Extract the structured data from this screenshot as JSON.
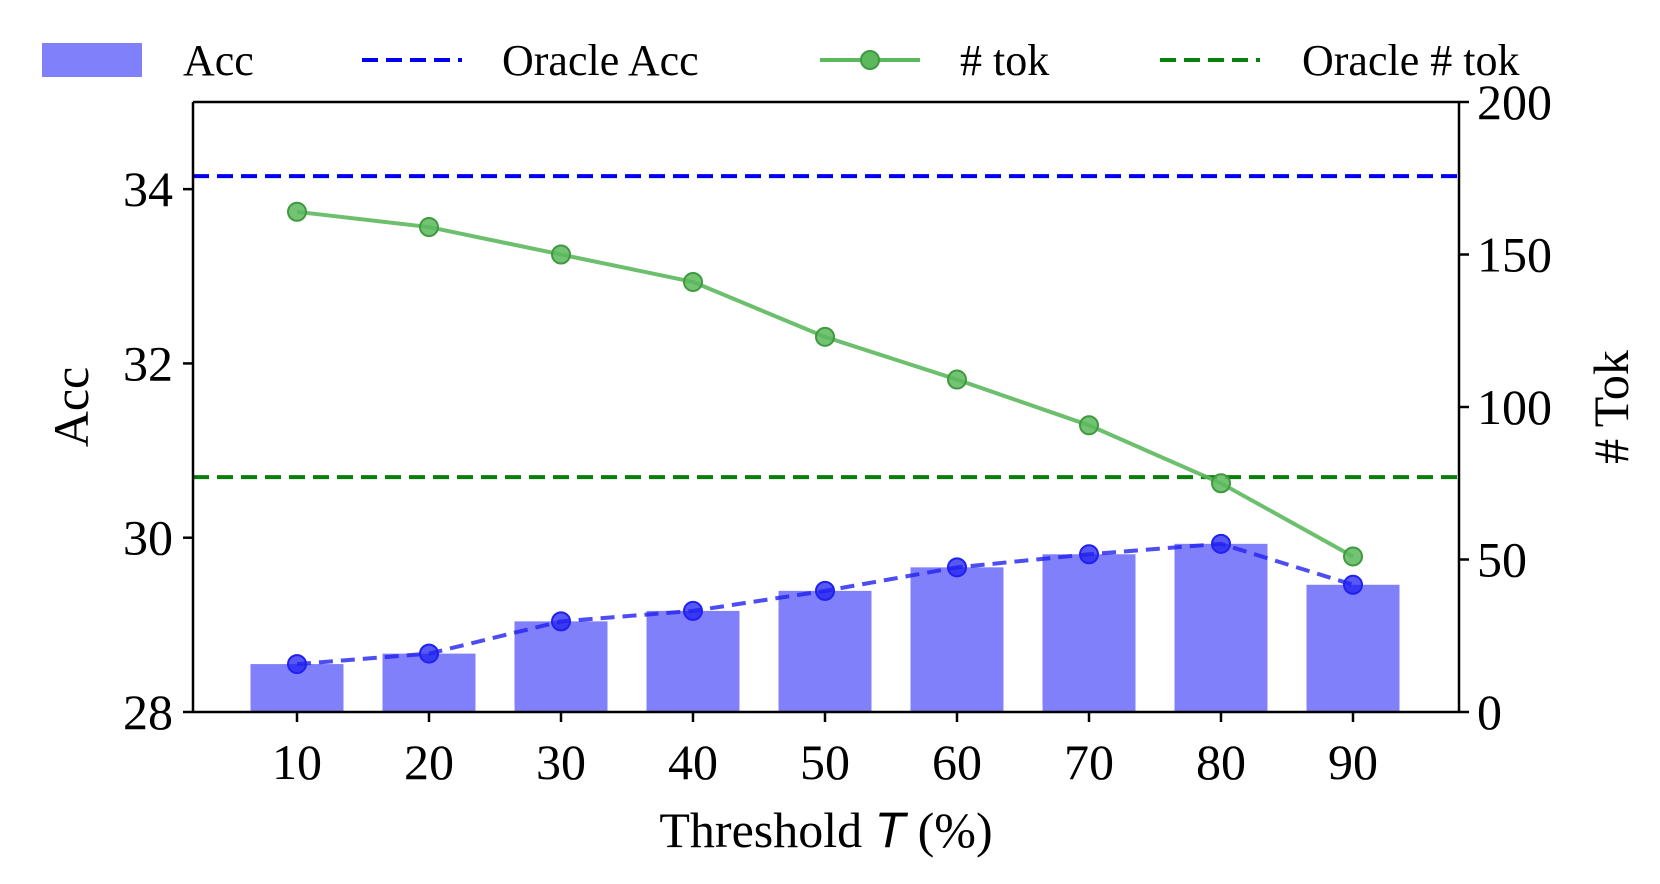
{
  "chart_data": {
    "type": "bar",
    "categories": [
      "10",
      "20",
      "30",
      "40",
      "50",
      "60",
      "70",
      "80",
      "90"
    ],
    "series": [
      {
        "name": "Acc",
        "kind": "bar",
        "axis": "left",
        "values": [
          28.55,
          28.67,
          29.04,
          29.16,
          29.39,
          29.66,
          29.81,
          29.93,
          29.46
        ],
        "color": "#8080fb"
      },
      {
        "name": "",
        "kind": "line-dashed-markers",
        "axis": "left",
        "values": [
          28.55,
          28.67,
          29.04,
          29.16,
          29.39,
          29.66,
          29.81,
          29.93,
          29.46
        ],
        "color": "#2020f0"
      },
      {
        "name": "Oracle Acc",
        "kind": "hline-dashed",
        "axis": "left",
        "value": 34.15,
        "color": "#0000ee"
      },
      {
        "name": "# tok",
        "kind": "line-markers",
        "axis": "right",
        "values": [
          164,
          159,
          150,
          141,
          123,
          109,
          94,
          75,
          51
        ],
        "color": "#5cb85c"
      },
      {
        "name": "Oracle # tok",
        "kind": "hline-dashed",
        "axis": "right",
        "value": 77,
        "color": "#0a7d0a"
      }
    ],
    "xlabel_prefix": "Threshold ",
    "xlabel_italic": "T",
    "xlabel_suffix": " (%)",
    "ylabel": "Acc",
    "y2label": "# Tok",
    "ylim": [
      28,
      35
    ],
    "y2lim": [
      0,
      200
    ],
    "yticks": [
      "28",
      "30",
      "32",
      "34"
    ],
    "y2ticks": [
      "0",
      "50",
      "100",
      "150",
      "200"
    ],
    "grid": false,
    "legend_position": "top"
  }
}
